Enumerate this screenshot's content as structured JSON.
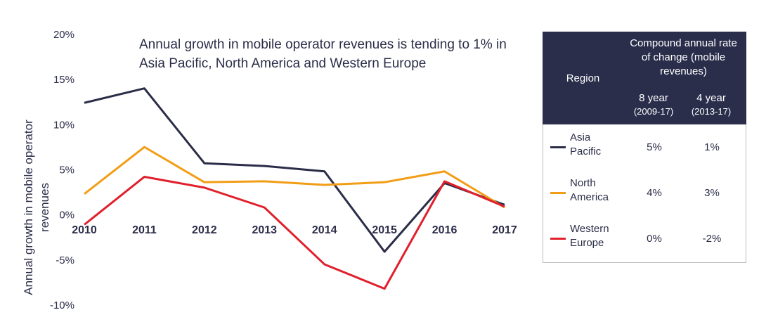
{
  "chart_data": {
    "type": "line",
    "title": "Annual growth in mobile operator revenues is tending to 1% in Asia Pacific, North America and Western Europe",
    "y_label": "Annual growth in mobile operator revenues",
    "categories": [
      "2010",
      "2011",
      "2012",
      "2013",
      "2014",
      "2015",
      "2016",
      "2017"
    ],
    "ylim": [
      -10,
      20
    ],
    "yticks": [
      {
        "value": -10,
        "label": "-10%"
      },
      {
        "value": -5,
        "label": "-5%"
      },
      {
        "value": 0,
        "label": "0%"
      },
      {
        "value": 5,
        "label": "5%"
      },
      {
        "value": 10,
        "label": "10%"
      },
      {
        "value": 15,
        "label": "15%"
      },
      {
        "value": 20,
        "label": "20%"
      }
    ],
    "grid": false,
    "series": [
      {
        "name": "Asia Pacific",
        "color": "#2b2d48",
        "values": [
          12.5,
          14.1,
          5.8,
          5.5,
          4.9,
          -4.0,
          3.6,
          1.2
        ]
      },
      {
        "name": "North America",
        "color": "#f29d16",
        "values": [
          2.4,
          7.6,
          3.7,
          3.8,
          3.4,
          3.7,
          4.9,
          0.9
        ]
      },
      {
        "name": "Western Europe",
        "color": "#e0202c",
        "values": [
          -1.0,
          4.3,
          3.1,
          0.9,
          -5.4,
          -8.1,
          3.8,
          1.0
        ]
      }
    ]
  },
  "table": {
    "header": {
      "region": "Region",
      "rate": "Compound annual rate of change (mobile revenues)",
      "col1": "8 year",
      "col1_period": "(2009-17)",
      "col2": "4 year",
      "col2_period": "(2013-17)"
    },
    "rows": [
      [
        "5%",
        "1%"
      ],
      [
        "4%",
        "3%"
      ],
      [
        "0%",
        "-2%"
      ]
    ]
  }
}
